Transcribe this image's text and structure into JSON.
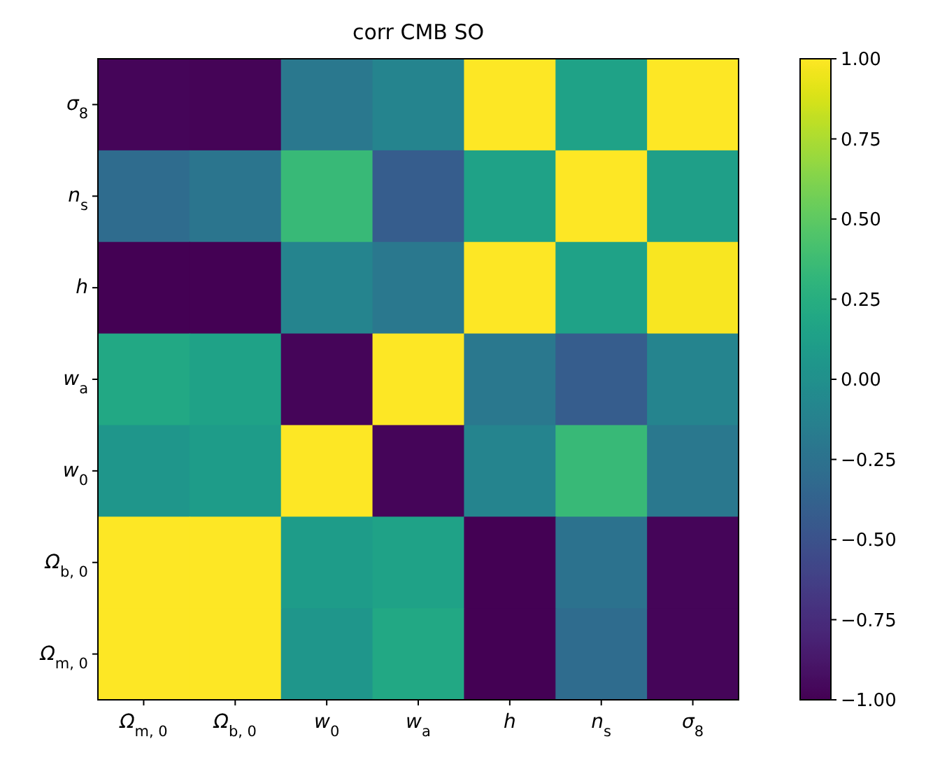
{
  "chart_data": {
    "type": "heatmap",
    "title": "corr CMB SO",
    "categories": [
      "Ω$_{m, 0}$",
      "Ω$_{b, 0}$",
      "w$_{0}$",
      "w$_{a}$",
      "h",
      "n$_{s}$",
      "σ$_{8}$"
    ],
    "y_categories": [
      "σ$_{8}$",
      "n$_{s}$",
      "h",
      "w$_{a}$",
      "w$_{0}$",
      "Ω$_{b, 0}$",
      "Ω$_{m, 0}$"
    ],
    "cells": [
      [
        -0.97,
        -0.98,
        -0.2,
        -0.1,
        1,
        0.15,
        1
      ],
      [
        -0.3,
        -0.22,
        0.35,
        -0.42,
        0.15,
        1,
        0.12
      ],
      [
        -1,
        -1,
        -0.1,
        -0.2,
        1,
        0.15,
        0.98
      ],
      [
        0.2,
        0.15,
        -0.97,
        1,
        -0.2,
        -0.42,
        -0.1
      ],
      [
        0.05,
        0.1,
        1,
        -0.97,
        -0.1,
        0.35,
        -0.2
      ],
      [
        1,
        1,
        0.1,
        0.15,
        -1,
        -0.25,
        -0.97
      ],
      [
        1,
        1,
        0.05,
        0.2,
        -1,
        -0.3,
        -0.97
      ]
    ],
    "clim": [
      -1,
      1
    ],
    "cticks": [
      {
        "value": -1,
        "label": "−1.00"
      },
      {
        "value": -0.75,
        "label": "−0.75"
      },
      {
        "value": -0.5,
        "label": "−0.50"
      },
      {
        "value": -0.25,
        "label": "−0.25"
      },
      {
        "value": 0,
        "label": "0.00"
      },
      {
        "value": 0.25,
        "label": "0.25"
      },
      {
        "value": 0.5,
        "label": "0.50"
      },
      {
        "value": 0.75,
        "label": "0.75"
      },
      {
        "value": 1,
        "label": "1.00"
      }
    ]
  }
}
